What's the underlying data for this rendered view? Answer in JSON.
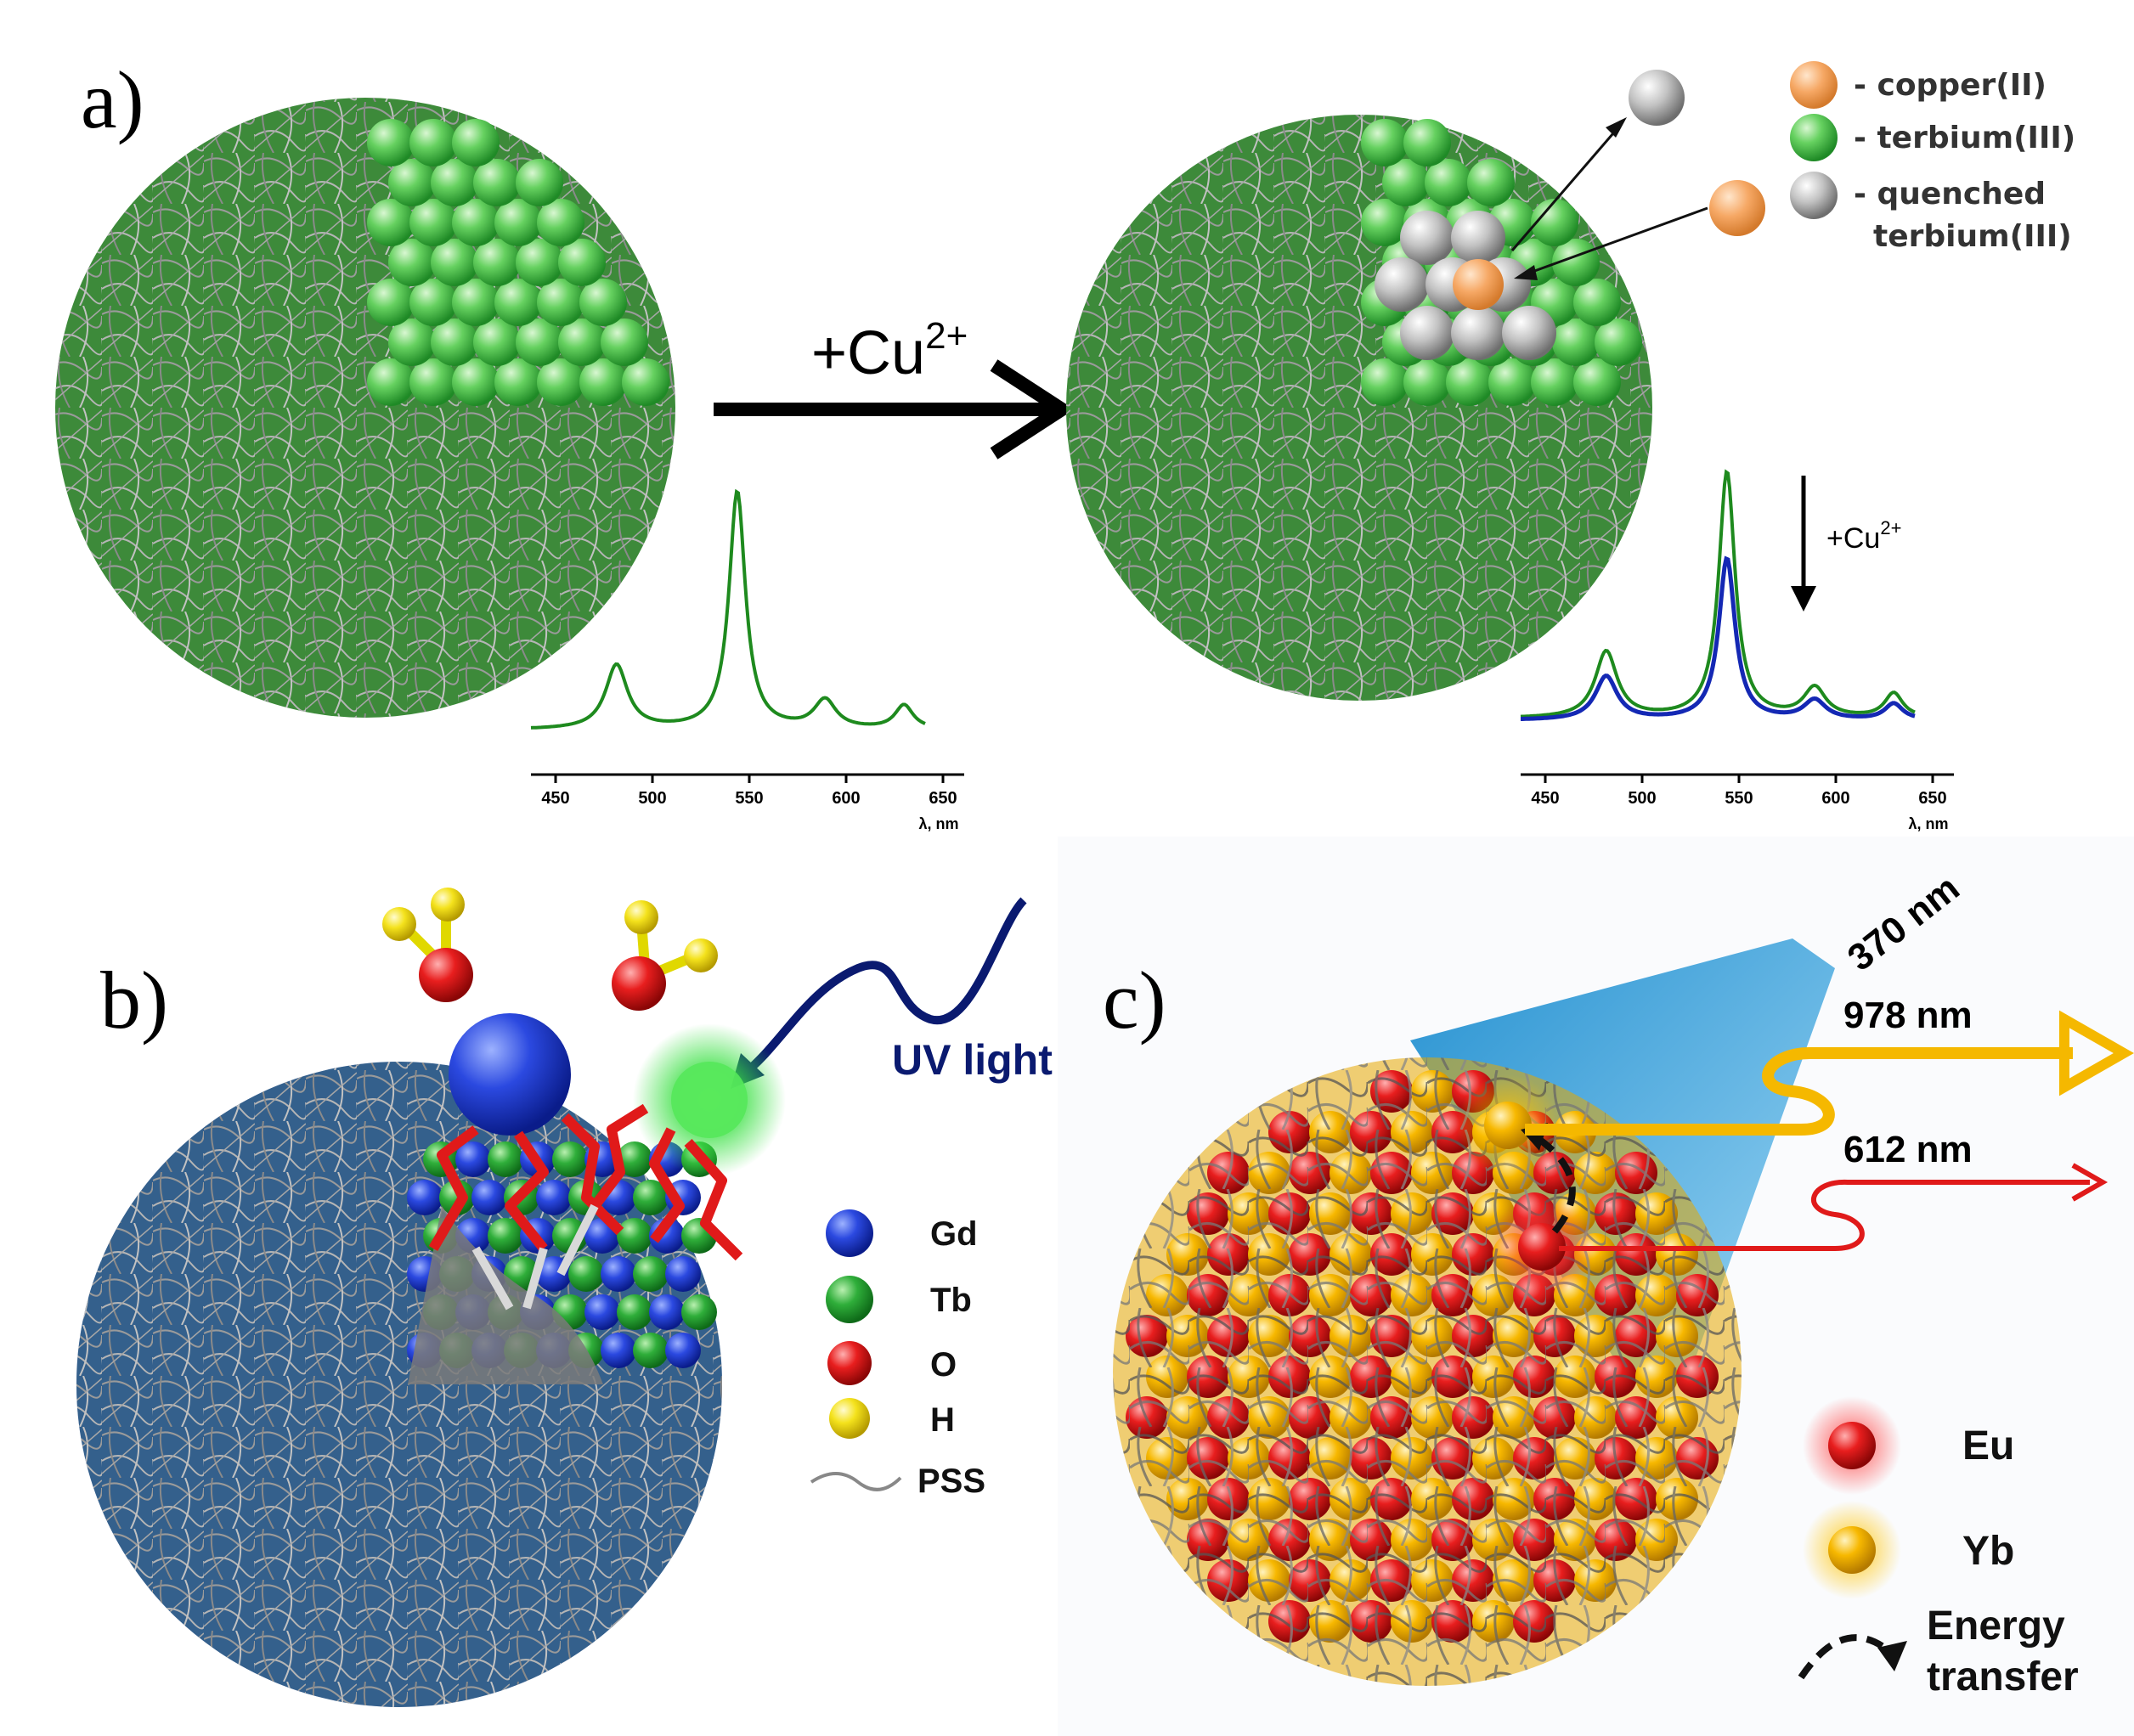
{
  "panels": {
    "a": {
      "label": "a)",
      "reaction_label": "+Cu",
      "reaction_sup": "2+",
      "legend": [
        {
          "line1": "- copper(II)",
          "line2": "",
          "color": "#f4a460"
        },
        {
          "line1": "- terbium(III)",
          "line2": "",
          "color": "#3cb64a"
        },
        {
          "line1": "- quenched",
          "line2": "terbium(III)",
          "color": "#9a9a9a"
        }
      ],
      "spectrum_left": {
        "ticks": [
          "450",
          "500",
          "550",
          "600",
          "650"
        ],
        "axis_title": "λ, nm"
      },
      "spectrum_right": {
        "ticks": [
          "450",
          "500",
          "550",
          "600",
          "650"
        ],
        "axis_title": "λ, nm",
        "annotation": "+Cu",
        "annotation_sup": "2+"
      }
    },
    "b": {
      "label": "b)",
      "uv_label": "UV light",
      "legend": [
        {
          "label": "Gd",
          "color": "#1f3fd8"
        },
        {
          "label": "Tb",
          "color": "#2ea43a"
        },
        {
          "label": "O",
          "color": "#e01a1a"
        },
        {
          "label": "H",
          "color": "#f2e21a"
        },
        {
          "label": "PSS",
          "color": "#888888"
        }
      ]
    },
    "c": {
      "label": "c)",
      "excitation": "370 nm",
      "emission_yb": "978 nm",
      "emission_eu": "612 nm",
      "legend": [
        {
          "label": "Eu",
          "color": "#e01a1a"
        },
        {
          "label": "Yb",
          "color": "#f5b800"
        }
      ],
      "energy_transfer_line1": "Energy",
      "energy_transfer_line2": "transfer"
    }
  },
  "colors": {
    "terbium": "#3cb64a",
    "copper": "#f4a460",
    "quenched": "#9a9a9a",
    "gd": "#1f3fd8",
    "eu": "#e01a1a",
    "yb": "#f5b800",
    "pss": "#9a9a9a",
    "spectrum_green": "#1e8a1e",
    "spectrum_blue": "#1428b4",
    "uv_navy": "#0a1a70",
    "beam_blue": "#1a8fd0"
  }
}
